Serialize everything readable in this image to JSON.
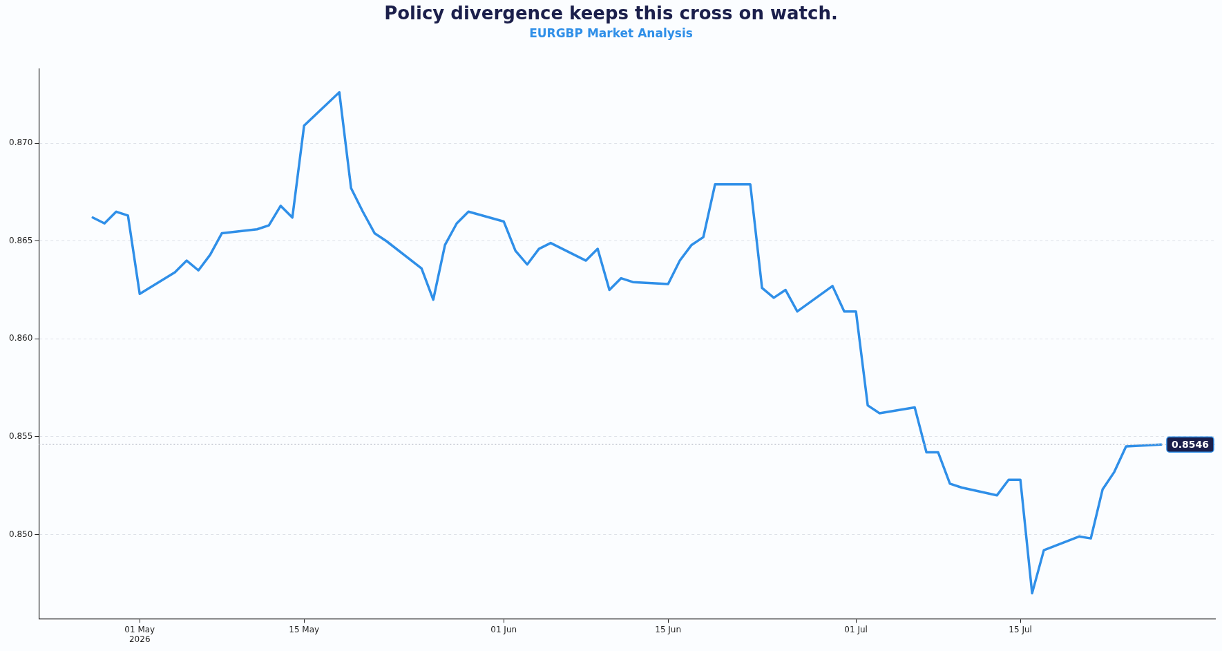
{
  "chart_data": {
    "type": "line",
    "title": "Policy divergence keeps this cross on watch.",
    "subtitle": "EURGBP Market Analysis",
    "x": [
      "2026-04-27",
      "2026-04-28",
      "2026-04-29",
      "2026-04-30",
      "2026-05-01",
      "2026-05-04",
      "2026-05-05",
      "2026-05-06",
      "2026-05-07",
      "2026-05-08",
      "2026-05-11",
      "2026-05-12",
      "2026-05-13",
      "2026-05-14",
      "2026-05-15",
      "2026-05-18",
      "2026-05-19",
      "2026-05-20",
      "2026-05-21",
      "2026-05-22",
      "2026-05-25",
      "2026-05-26",
      "2026-05-27",
      "2026-05-28",
      "2026-05-29",
      "2026-06-01",
      "2026-06-02",
      "2026-06-03",
      "2026-06-04",
      "2026-06-05",
      "2026-06-08",
      "2026-06-09",
      "2026-06-10",
      "2026-06-11",
      "2026-06-12",
      "2026-06-15",
      "2026-06-16",
      "2026-06-17",
      "2026-06-18",
      "2026-06-19",
      "2026-06-22",
      "2026-06-23",
      "2026-06-24",
      "2026-06-25",
      "2026-06-26",
      "2026-06-29",
      "2026-06-30",
      "2026-07-01",
      "2026-07-02",
      "2026-07-03",
      "2026-07-06",
      "2026-07-07",
      "2026-07-08",
      "2026-07-09",
      "2026-07-10",
      "2026-07-13",
      "2026-07-14",
      "2026-07-15",
      "2026-07-16",
      "2026-07-17",
      "2026-07-20",
      "2026-07-21",
      "2026-07-22",
      "2026-07-23",
      "2026-07-24",
      "2026-07-27"
    ],
    "series": [
      {
        "color": "#2f8fe8",
        "values": [
          0.8662,
          0.8659,
          0.8665,
          0.8663,
          0.8623,
          0.8634,
          0.864,
          0.8635,
          0.8643,
          0.8654,
          0.8656,
          0.8658,
          0.8668,
          0.8662,
          0.8709,
          0.8726,
          0.8677,
          0.8665,
          0.8654,
          0.865,
          0.8636,
          0.862,
          0.8648,
          0.8659,
          0.8665,
          0.866,
          0.8645,
          0.8638,
          0.8646,
          0.8649,
          0.864,
          0.8646,
          0.8625,
          0.8631,
          0.8629,
          0.8628,
          0.864,
          0.8648,
          0.8652,
          0.8679,
          0.8679,
          0.8626,
          0.8621,
          0.8625,
          0.8614,
          0.8627,
          0.8614,
          0.8614,
          0.8566,
          0.8562,
          0.8565,
          0.8542,
          0.8542,
          0.8526,
          0.8524,
          0.852,
          0.8528,
          0.8528,
          0.847,
          0.8492,
          0.8499,
          0.8498,
          0.8523,
          0.8532,
          0.8545,
          0.8546
        ]
      }
    ],
    "xlim": [
      "2026-04-22T10:00",
      "2026-07-31T14:00"
    ],
    "xticks": [
      {
        "value": "2026-05-01",
        "label": "01 May\n2026"
      },
      {
        "value": "2026-05-15",
        "label": "15 May"
      },
      {
        "value": "2026-06-01",
        "label": "01 Jun"
      },
      {
        "value": "2026-06-15",
        "label": "15 Jun"
      },
      {
        "value": "2026-07-01",
        "label": "01 Jul"
      },
      {
        "value": "2026-07-15",
        "label": "15 Jul"
      }
    ],
    "ylim": [
      0.8457,
      0.8738
    ],
    "yticks": [
      {
        "value": 0.85,
        "label": "0.850"
      },
      0.855,
      {
        "value": 0.86,
        "label": "0.860"
      },
      0.865,
      {
        "value": 0.87,
        "label": "0.870"
      }
    ],
    "ref_lines": [
      {
        "axis": "y",
        "value": 0.8546,
        "label": "0.8546",
        "color": "#b8bcc8",
        "line_style": "dotted"
      }
    ],
    "grid": "y",
    "legend": false,
    "marker": "none",
    "line_style": "solid"
  }
}
